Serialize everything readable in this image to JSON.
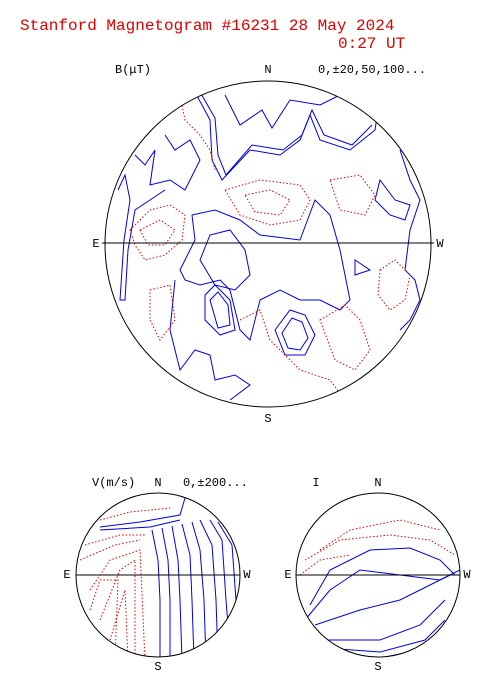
{
  "header": {
    "title": "Stanford Magnetogram #16231 28 May  2024",
    "time": "0:27 UT"
  },
  "panels": [
    {
      "quantity": "B(μT)",
      "north": "N",
      "levels": "0,±20,50,100...",
      "east": "E",
      "west": "W",
      "south": "S"
    },
    {
      "quantity": "V(m/s)",
      "north": "N",
      "levels": "0,±200...",
      "east": "E",
      "west": "W",
      "south": "S"
    },
    {
      "quantity": "I",
      "north": "N",
      "east": "E",
      "west": "W",
      "south": "S"
    }
  ]
}
